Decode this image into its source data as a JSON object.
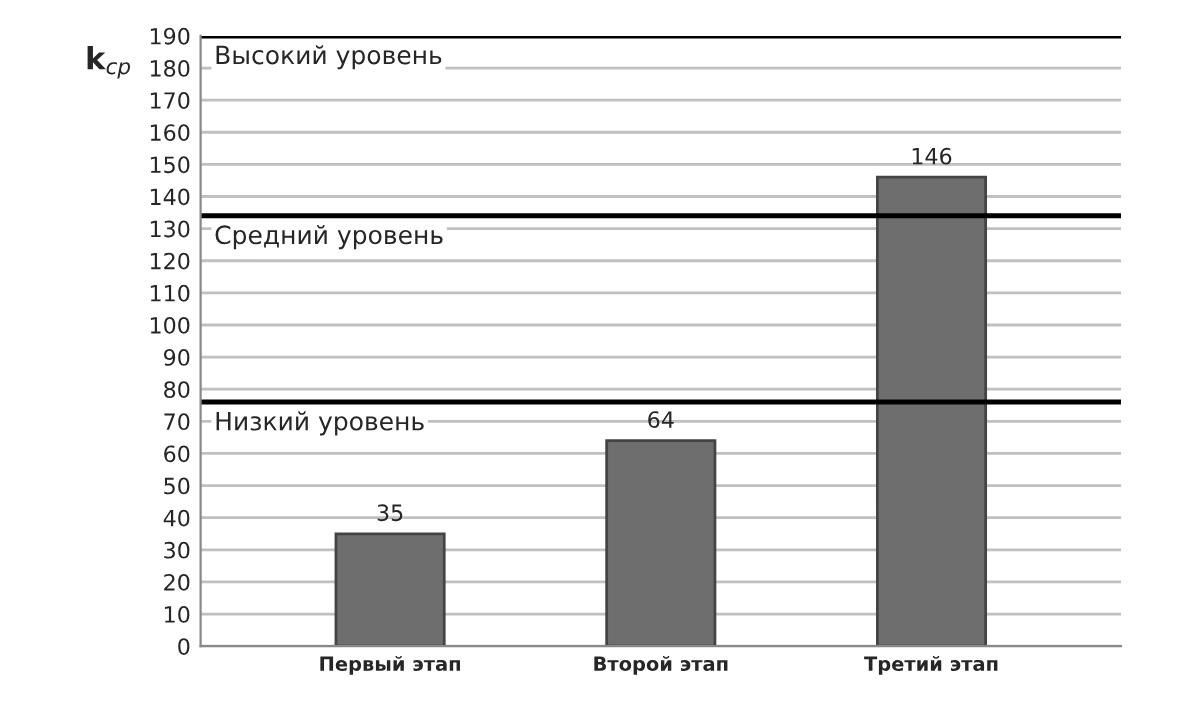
{
  "chart_data": {
    "type": "bar",
    "ylabel": "k$_{ср}$",
    "categories": [
      "Первый этап",
      "Второй этап",
      "Третий этап"
    ],
    "values": [
      35,
      64,
      146
    ],
    "color": "#6e6e6e",
    "ylim": [
      0,
      190
    ],
    "yticks": [
      0,
      10,
      20,
      30,
      40,
      50,
      60,
      70,
      80,
      90,
      100,
      110,
      120,
      130,
      140,
      150,
      160,
      170,
      180,
      190
    ],
    "grid": "y",
    "data_labels": true,
    "ref_lines": [
      {
        "axis": "y",
        "value": 190,
        "label": "Высокий уровень",
        "color": "#000000"
      },
      {
        "axis": "y",
        "value": 134,
        "label": "Средний уровень",
        "color": "#000000"
      },
      {
        "axis": "y",
        "value": 76,
        "label": "Низкий уровень",
        "color": "#000000"
      }
    ]
  }
}
